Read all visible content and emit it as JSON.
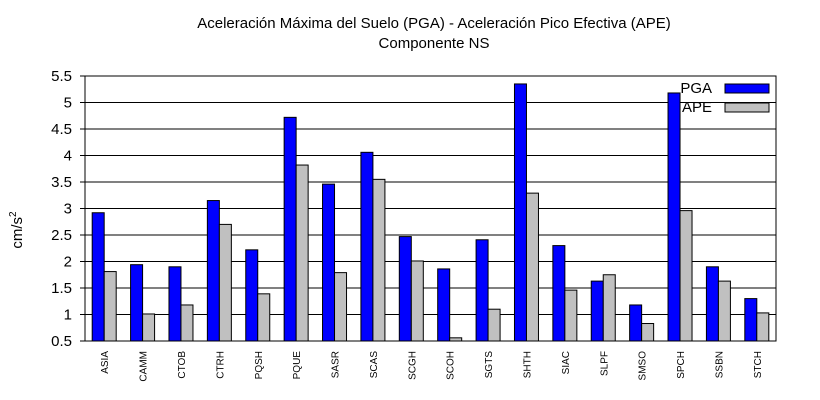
{
  "chart_data": {
    "type": "bar",
    "title": "Aceleración Máxima del Suelo (PGA) -  Aceleración Pico Efectiva (APE)",
    "subtitle": "Componente NS",
    "xlabel": "",
    "ylabel": "cm/s",
    "ylabel_sup": "2",
    "ylim": [
      0.5,
      5.5
    ],
    "yticks": [
      0.5,
      1,
      1.5,
      2,
      2.5,
      3,
      3.5,
      4,
      4.5,
      5,
      5.5
    ],
    "ytick_labels": [
      "0.5",
      "1",
      "1.5",
      "2",
      "2.5",
      "3",
      "3.5",
      "4",
      "4.5",
      "5",
      "5.5"
    ],
    "grid": true,
    "legend_position": "top-right",
    "categories": [
      "ASIA",
      "CAMM",
      "CTOB",
      "CTRH",
      "PQSH",
      "PQUE",
      "SASR",
      "SCAS",
      "SCGH",
      "SCOH",
      "SGTS",
      "SHTH",
      "SIAC",
      "SLPF",
      "SMSO",
      "SPCH",
      "SSBN",
      "STCH"
    ],
    "series": [
      {
        "name": "PGA",
        "color": "#0000ff",
        "values": [
          2.92,
          1.94,
          1.9,
          3.15,
          2.22,
          4.72,
          3.46,
          4.06,
          2.47,
          1.86,
          2.41,
          5.35,
          2.3,
          1.63,
          1.18,
          5.18,
          1.9,
          1.3
        ]
      },
      {
        "name": "APE",
        "color": "#c0c0c0",
        "values": [
          1.81,
          1.01,
          1.18,
          2.7,
          1.39,
          3.82,
          1.79,
          3.55,
          2.01,
          0.56,
          1.1,
          3.29,
          1.46,
          1.75,
          0.83,
          2.96,
          1.63,
          1.03
        ]
      }
    ]
  }
}
